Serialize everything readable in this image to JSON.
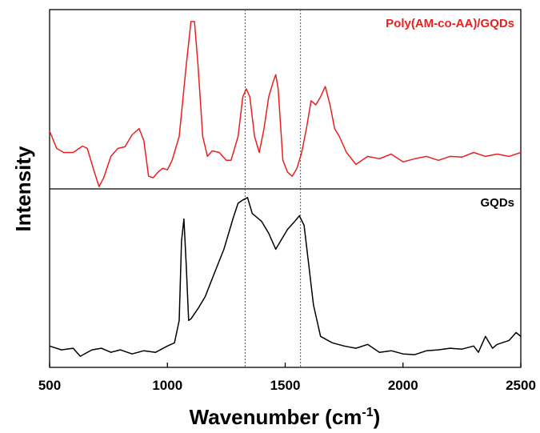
{
  "chart_data": [
    {
      "type": "line",
      "ylabel": "Intensity",
      "xlim": [
        500,
        2500
      ],
      "ylim": [
        0,
        100
      ],
      "vlines": [
        1330,
        1565
      ],
      "x": [
        500,
        530,
        560,
        600,
        640,
        660,
        690,
        710,
        730,
        760,
        790,
        820,
        850,
        880,
        900,
        920,
        940,
        960,
        980,
        1000,
        1020,
        1050,
        1080,
        1100,
        1115,
        1130,
        1150,
        1170,
        1190,
        1220,
        1250,
        1270,
        1300,
        1320,
        1335,
        1350,
        1370,
        1390,
        1410,
        1430,
        1450,
        1460,
        1470,
        1490,
        1510,
        1530,
        1550,
        1570,
        1590,
        1610,
        1630,
        1650,
        1670,
        1690,
        1710,
        1730,
        1760,
        1800,
        1850,
        1900,
        1950,
        2000,
        2050,
        2100,
        2150,
        2200,
        2250,
        2300,
        2350,
        2400,
        2450,
        2500
      ],
      "series": [
        {
          "name": "Poly(AM-co-AA)/GQDs",
          "color": "#e8211f",
          "values": [
            32.6,
            22.8,
            20.5,
            20.5,
            24.1,
            22.8,
            9.4,
            1.3,
            6.3,
            18.3,
            22.8,
            23.7,
            30.4,
            33.9,
            27.2,
            7.1,
            6.3,
            9.4,
            11.6,
            10.7,
            16.1,
            29.5,
            69.6,
            94.2,
            94.2,
            69.6,
            29.5,
            18.3,
            21.4,
            20.5,
            16.1,
            16.1,
            29.5,
            51.8,
            56.3,
            51.8,
            29.5,
            20.5,
            33.9,
            51.8,
            60.7,
            64.3,
            56.3,
            16.1,
            9.4,
            7.1,
            11.6,
            20.5,
            33.9,
            49.6,
            47.3,
            51.8,
            57.6,
            47.3,
            33.9,
            29.5,
            20.5,
            13.8,
            18.3,
            17.0,
            19.6,
            15.2,
            17.0,
            18.3,
            16.1,
            18.3,
            17.9,
            20.5,
            18.3,
            19.6,
            18.3,
            20.5
          ]
        }
      ]
    },
    {
      "type": "line",
      "xlabel": "Wavenumber (cm",
      "xlabel_sup": "-1",
      "xlabel_end": ")",
      "xlim": [
        500,
        2500
      ],
      "ylim": [
        0,
        100
      ],
      "xticks": [
        500,
        1000,
        1500,
        2000,
        2500
      ],
      "x": [
        500,
        550,
        600,
        630,
        680,
        720,
        760,
        800,
        850,
        900,
        950,
        1000,
        1030,
        1050,
        1060,
        1070,
        1080,
        1090,
        1100,
        1130,
        1160,
        1200,
        1240,
        1280,
        1300,
        1320,
        1340,
        1360,
        1400,
        1430,
        1460,
        1480,
        1510,
        1540,
        1560,
        1580,
        1600,
        1620,
        1650,
        1700,
        1750,
        1800,
        1850,
        1900,
        1950,
        2000,
        2050,
        2100,
        2150,
        2200,
        2250,
        2300,
        2320,
        2350,
        2380,
        2400,
        2450,
        2480,
        2500
      ],
      "series": [
        {
          "name": "GQDs",
          "color": "#000000",
          "values": [
            12.1,
            9.9,
            10.8,
            6.3,
            9.9,
            10.8,
            8.5,
            9.9,
            7.6,
            9.4,
            8.5,
            12.1,
            13.9,
            26.5,
            71.3,
            83.9,
            57.8,
            26.5,
            27.4,
            33.2,
            39.9,
            53.4,
            66.8,
            84.8,
            92.8,
            94.6,
            96.0,
            87.0,
            82.5,
            75.8,
            66.8,
            71.3,
            78.0,
            82.5,
            85.7,
            80.3,
            57.8,
            35.4,
            17.5,
            13.9,
            12.1,
            10.8,
            13.0,
            8.5,
            9.4,
            7.6,
            7.2,
            9.4,
            9.9,
            10.8,
            10.3,
            12.1,
            8.5,
            17.5,
            10.8,
            13.0,
            15.2,
            19.7,
            17.5
          ]
        }
      ]
    }
  ]
}
